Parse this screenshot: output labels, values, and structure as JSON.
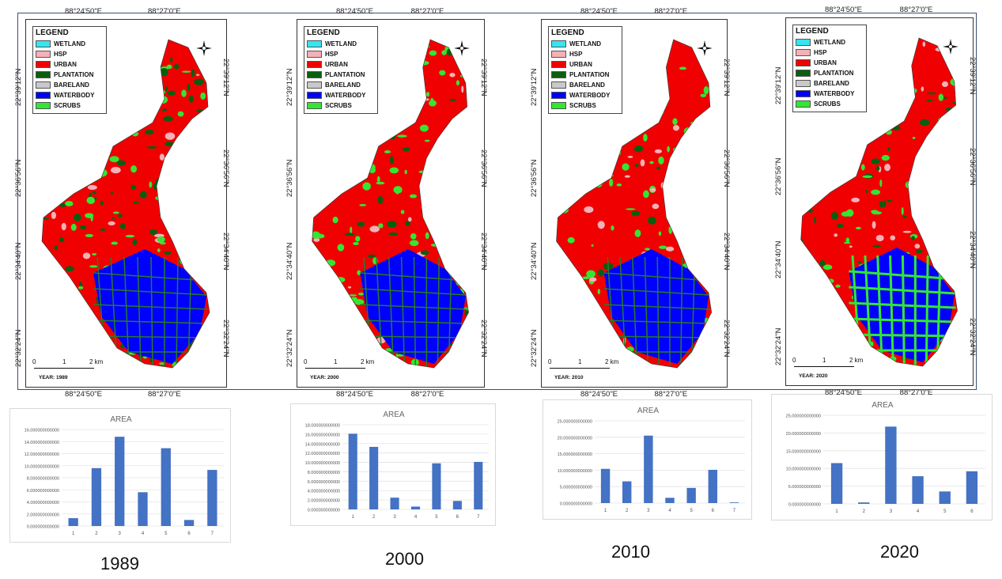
{
  "legend": {
    "title": "LEGEND",
    "items": [
      {
        "label": "WETLAND",
        "color": "#33e6f0"
      },
      {
        "label": "HSP",
        "color": "#f5b0b8"
      },
      {
        "label": "URBAN",
        "color": "#f00000"
      },
      {
        "label": "PLANTATION",
        "color": "#0b5e10"
      },
      {
        "label": "BARELAND",
        "color": "#c9c9c9"
      },
      {
        "label": "WATERBODY",
        "color": "#0000ff"
      },
      {
        "label": "SCRUBS",
        "color": "#33e633"
      }
    ]
  },
  "coords": {
    "top_left": "88°24'50\"E",
    "top_right": "88°27'0\"E",
    "lat1": "22°39'12\"N",
    "lat2": "22°36'56\"N",
    "lat3": "22°34'40\"N",
    "lat4": "22°32'24\"N"
  },
  "scalebar": {
    "t0": "0",
    "t1": "1",
    "t2": "2 km"
  },
  "maps": [
    {
      "year_caption": "YEAR: 1989"
    },
    {
      "year_caption": "YEAR: 2000"
    },
    {
      "year_caption": "YEAR: 2010"
    },
    {
      "year_caption": "YEAR: 2020"
    }
  ],
  "chart_data": [
    {
      "type": "bar",
      "title": "AREA",
      "categories": [
        "1",
        "2",
        "3",
        "4",
        "5",
        "6",
        "7"
      ],
      "values": [
        1.3,
        9.6,
        14.8,
        5.6,
        12.9,
        1.0,
        9.3
      ],
      "ylim": [
        0,
        16
      ],
      "ticks": [
        "0.000000000000",
        "2.000000000000",
        "4.000000000000",
        "6.000000000000",
        "8.000000000000",
        "10.000000000000",
        "12.000000000000",
        "14.000000000000",
        "16.000000000000"
      ],
      "color": "#4472c4"
    },
    {
      "type": "bar",
      "title": "AREA",
      "categories": [
        "1",
        "2",
        "3",
        "4",
        "5",
        "6",
        "7"
      ],
      "values": [
        16.1,
        13.3,
        2.5,
        0.6,
        9.8,
        1.8,
        10.1
      ],
      "ylim": [
        0,
        18
      ],
      "ticks": [
        "0.000000000000",
        "2.000000000000",
        "4.000000000000",
        "6.000000000000",
        "8.000000000000",
        "10.000000000000",
        "12.000000000000",
        "14.000000000000",
        "16.000000000000",
        "18.000000000000"
      ],
      "color": "#4472c4"
    },
    {
      "type": "bar",
      "title": "AREA",
      "categories": [
        "1",
        "2",
        "3",
        "4",
        "5",
        "6",
        "7"
      ],
      "values": [
        10.4,
        6.6,
        20.5,
        1.6,
        4.6,
        10.1,
        0.2
      ],
      "ylim": [
        0,
        25
      ],
      "ticks": [
        "0.000000000000",
        "5.000000000000",
        "10.000000000000",
        "15.000000000000",
        "20.000000000000",
        "25.000000000000"
      ],
      "color": "#4472c4"
    },
    {
      "type": "bar",
      "title": "AREA",
      "categories": [
        "1",
        "2",
        "3",
        "4",
        "5",
        "6"
      ],
      "values": [
        11.5,
        0.4,
        21.8,
        7.8,
        3.5,
        9.2
      ],
      "ylim": [
        0,
        25
      ],
      "ticks": [
        "0.000000000000",
        "5.000000000000",
        "10.000000000000",
        "15.000000000000",
        "20.000000000000",
        "25.000000000000"
      ],
      "color": "#4472c4"
    }
  ],
  "year_labels": [
    "1989",
    "2000",
    "2010",
    "2020"
  ]
}
